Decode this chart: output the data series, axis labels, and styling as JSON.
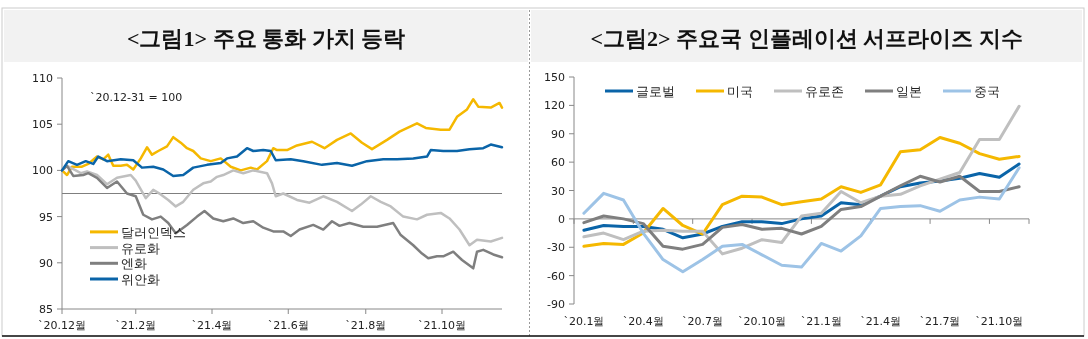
{
  "chart_data": [
    {
      "type": "line",
      "title": "<그림1> 주요 통화 가치 등락",
      "annotations": [
        "`20.12-31 = 100"
      ],
      "xlim": [
        "2020-12-31",
        "2021-12-18"
      ],
      "xticks": [
        {
          "value": "2020-12-31",
          "label": "`20.12월"
        },
        {
          "value": "2021-02-28",
          "label": "`21.2월"
        },
        {
          "value": "2021-04-30",
          "label": "`21.4월"
        },
        {
          "value": "2021-06-30",
          "label": "`21.6월"
        },
        {
          "value": "2021-08-31",
          "label": "`21.8월"
        },
        {
          "value": "2021-10-31",
          "label": "`21.10월"
        }
      ],
      "ylim": [
        85,
        110
      ],
      "yticks": [
        85,
        90,
        95,
        100,
        105,
        110
      ],
      "ref_lines": [
        {
          "axis": "y",
          "value": 97.5,
          "color": "#7f7f7f"
        }
      ],
      "legend": "bottom left",
      "series": [
        {
          "name": "달러인덱스",
          "color": "#f5b800",
          "x": [
            "2020-12-31",
            "2021-01-04",
            "2021-01-08",
            "2021-01-16",
            "2021-01-21",
            "2021-01-28",
            "2021-02-02",
            "2021-02-06",
            "2021-02-10",
            "2021-02-16",
            "2021-02-21",
            "2021-02-26",
            "2021-03-04",
            "2021-03-09",
            "2021-03-13",
            "2021-03-18",
            "2021-03-25",
            "2021-03-30",
            "2021-04-05",
            "2021-04-10",
            "2021-04-15",
            "2021-04-21",
            "2021-04-29",
            "2021-05-07",
            "2021-05-15",
            "2021-05-23",
            "2021-05-31",
            "2021-06-05",
            "2021-06-13",
            "2021-06-18",
            "2021-06-21",
            "2021-06-29",
            "2021-07-07",
            "2021-07-19",
            "2021-07-29",
            "2021-08-08",
            "2021-08-19",
            "2021-08-28",
            "2021-09-05",
            "2021-09-17",
            "2021-09-27",
            "2021-10-11",
            "2021-10-18",
            "2021-10-30",
            "2021-11-06",
            "2021-11-12",
            "2021-11-20",
            "2021-11-25",
            "2021-11-29",
            "2021-12-09",
            "2021-12-16",
            "2021-12-18"
          ],
          "values": [
            100,
            99.5,
            100.4,
            100.4,
            100.7,
            101.5,
            101.2,
            101.7,
            100.5,
            100.5,
            100.6,
            100.1,
            101.3,
            102.5,
            101.7,
            102.1,
            102.6,
            103.6,
            103,
            102.4,
            102.1,
            101.3,
            101,
            101.3,
            100.4,
            100,
            100.3,
            100.1,
            101,
            102.4,
            102.2,
            102.2,
            102.7,
            103.1,
            102.4,
            103.3,
            104,
            103,
            102.3,
            103.3,
            104.2,
            105.1,
            104.6,
            104.4,
            104.4,
            105.8,
            106.6,
            107.7,
            106.9,
            106.8,
            107.3,
            106.8
          ]
        },
        {
          "name": "유로화",
          "color": "#bfbfbf",
          "x": [
            "2020-12-31",
            "2021-01-04",
            "2021-01-11",
            "2021-01-15",
            "2021-01-20",
            "2021-01-28",
            "2021-02-05",
            "2021-02-13",
            "2021-02-24",
            "2021-02-28",
            "2021-03-08",
            "2021-03-14",
            "2021-03-20",
            "2021-03-26",
            "2021-04-01",
            "2021-04-07",
            "2021-04-15",
            "2021-04-23",
            "2021-04-29",
            "2021-05-04",
            "2021-05-09",
            "2021-05-17",
            "2021-05-25",
            "2021-06-02",
            "2021-06-13",
            "2021-06-17",
            "2021-06-20",
            "2021-06-26",
            "2021-07-07",
            "2021-07-17",
            "2021-07-28",
            "2021-08-08",
            "2021-08-20",
            "2021-08-27",
            "2021-09-04",
            "2021-09-12",
            "2021-09-20",
            "2021-09-30",
            "2021-10-11",
            "2021-10-19",
            "2021-10-30",
            "2021-11-06",
            "2021-11-14",
            "2021-11-22",
            "2021-11-28",
            "2021-12-09",
            "2021-12-18"
          ],
          "values": [
            100,
            100.5,
            100,
            99.7,
            99.9,
            99.5,
            98.5,
            99.2,
            99.5,
            98.9,
            97,
            97.9,
            97.4,
            96.8,
            96.1,
            96.6,
            97.9,
            98.6,
            98.8,
            99.3,
            99.5,
            100,
            99.7,
            100,
            99.7,
            98.6,
            97.2,
            97.5,
            96.8,
            96.5,
            97.2,
            96.6,
            95.6,
            96.3,
            97.2,
            96.6,
            96.1,
            95,
            94.7,
            95.2,
            95.4,
            94.8,
            93.6,
            91.9,
            92.5,
            92.3,
            92.7
          ]
        },
        {
          "name": "엔화",
          "color": "#7f7f7f",
          "x": [
            "2020-12-31",
            "2021-01-04",
            "2021-01-09",
            "2021-01-17",
            "2021-01-21",
            "2021-01-28",
            "2021-02-05",
            "2021-02-13",
            "2021-02-21",
            "2021-02-28",
            "2021-03-06",
            "2021-03-13",
            "2021-03-20",
            "2021-03-26",
            "2021-04-01",
            "2021-04-10",
            "2021-04-18",
            "2021-04-24",
            "2021-05-01",
            "2021-05-09",
            "2021-05-17",
            "2021-05-25",
            "2021-06-02",
            "2021-06-10",
            "2021-06-18",
            "2021-06-26",
            "2021-07-02",
            "2021-07-09",
            "2021-07-20",
            "2021-07-28",
            "2021-08-04",
            "2021-08-10",
            "2021-08-18",
            "2021-08-29",
            "2021-09-09",
            "2021-09-22",
            "2021-09-28",
            "2021-10-08",
            "2021-10-15",
            "2021-10-20",
            "2021-10-27",
            "2021-11-01",
            "2021-11-09",
            "2021-11-16",
            "2021-11-25",
            "2021-11-28",
            "2021-12-03",
            "2021-12-11",
            "2021-12-18"
          ],
          "values": [
            100,
            100.5,
            99.4,
            99.5,
            99.7,
            99.2,
            98.1,
            98.8,
            97.5,
            97.2,
            95.2,
            94.7,
            95,
            94.3,
            93.2,
            94.1,
            95,
            95.6,
            94.8,
            94.5,
            94.8,
            94.3,
            94.5,
            93.8,
            93.4,
            93.4,
            92.9,
            93.6,
            94.1,
            93.6,
            94.5,
            94,
            94.3,
            93.9,
            93.9,
            94.3,
            93,
            91.9,
            91,
            90.5,
            90.7,
            90.7,
            91.2,
            90.3,
            89.4,
            91.2,
            91.4,
            90.9,
            90.6
          ]
        },
        {
          "name": "위안화",
          "color": "#0a64a8",
          "x": [
            "2020-12-31",
            "2021-01-05",
            "2021-01-12",
            "2021-01-19",
            "2021-01-25",
            "2021-01-29",
            "2021-02-05",
            "2021-02-16",
            "2021-02-26",
            "2021-03-05",
            "2021-03-14",
            "2021-03-22",
            "2021-03-30",
            "2021-04-07",
            "2021-04-15",
            "2021-04-26",
            "2021-05-07",
            "2021-05-12",
            "2021-05-20",
            "2021-05-28",
            "2021-06-02",
            "2021-06-10",
            "2021-06-16",
            "2021-06-20",
            "2021-07-02",
            "2021-07-12",
            "2021-07-27",
            "2021-08-08",
            "2021-08-20",
            "2021-09-01",
            "2021-09-14",
            "2021-09-25",
            "2021-10-08",
            "2021-10-19",
            "2021-10-22",
            "2021-11-01",
            "2021-11-12",
            "2021-11-22",
            "2021-12-03",
            "2021-12-09",
            "2021-12-18"
          ],
          "values": [
            100,
            101,
            100.6,
            101,
            100.7,
            101.5,
            101,
            101.2,
            101.1,
            100.3,
            100.4,
            100.1,
            99.4,
            99.5,
            100.3,
            100.6,
            100.8,
            101.3,
            101.5,
            102.4,
            102.1,
            102.2,
            102.1,
            101.1,
            101.2,
            101,
            100.6,
            100.8,
            100.5,
            101,
            101.2,
            101.2,
            101.3,
            101.5,
            102.2,
            102.1,
            102.1,
            102.3,
            102.4,
            102.8,
            102.5
          ]
        }
      ]
    },
    {
      "type": "line",
      "title": "<그림2> 주요국 인플레이션 서프라이즈 지수",
      "categories": [
        "`20.1월",
        null,
        null,
        "`20.4월",
        null,
        null,
        "`20.7월",
        null,
        null,
        "`20.10월",
        null,
        null,
        "`21.1월",
        null,
        null,
        "`21.4월",
        null,
        null,
        "`21.7월",
        null,
        null,
        "`21.10월",
        null
      ],
      "ylim": [
        -90,
        150
      ],
      "yticks": [
        -90,
        -60,
        -30,
        0,
        30,
        60,
        90,
        120,
        150
      ],
      "legend": "top",
      "series": [
        {
          "name": "글로벌",
          "color": "#0a64a8",
          "values": [
            -12,
            -7,
            -8,
            -8,
            -11,
            -20,
            -16,
            -8,
            -3,
            -3,
            -5,
            0,
            3,
            17,
            15,
            24,
            34,
            38,
            40,
            43,
            48,
            44,
            58
          ]
        },
        {
          "name": "미국",
          "color": "#f5b800",
          "values": [
            -29,
            -26,
            -27,
            -15,
            11,
            -7,
            -16,
            15,
            24,
            23,
            15,
            18,
            21,
            34,
            28,
            36,
            71,
            73,
            86,
            80,
            69,
            63,
            66
          ]
        },
        {
          "name": "유로존",
          "color": "#bfbfbf",
          "values": [
            -19,
            -15,
            -22,
            -13,
            -12,
            -13,
            -13,
            -37,
            -31,
            -22,
            -25,
            3,
            6,
            29,
            17,
            24,
            26,
            35,
            42,
            49,
            84,
            84,
            119
          ]
        },
        {
          "name": "일본",
          "color": "#7f7f7f",
          "values": [
            -4,
            3,
            0,
            -5,
            -29,
            -32,
            -27,
            -9,
            -6,
            -11,
            -10,
            -16,
            -8,
            10,
            13,
            24,
            35,
            45,
            39,
            45,
            29,
            29,
            34
          ]
        },
        {
          "name": "중국",
          "color": "#9dc3e6",
          "values": [
            6,
            27,
            20,
            -15,
            -43,
            -56,
            -43,
            -29,
            -27,
            -38,
            -49,
            -51,
            -26,
            -34,
            -18,
            11,
            13,
            14,
            8,
            20,
            23,
            21,
            54
          ]
        }
      ]
    }
  ]
}
